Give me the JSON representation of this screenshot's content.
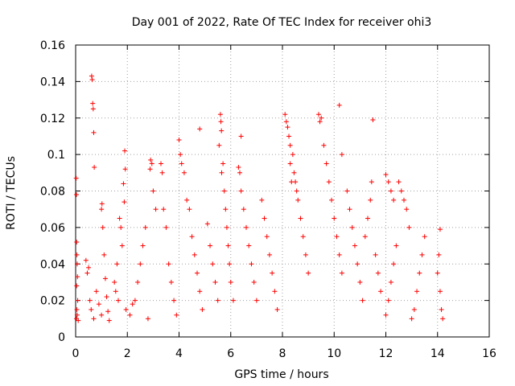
{
  "chart_data": {
    "type": "scatter",
    "title": "Day 001 of 2022, Rate Of TEC Index for receiver ohi3",
    "xlabel": "GPS time / hours",
    "ylabel": "ROTI / TECUs",
    "xlim": [
      0,
      16
    ],
    "ylim": [
      0,
      0.16
    ],
    "x_ticks": [
      0,
      2,
      4,
      6,
      8,
      10,
      12,
      14,
      16
    ],
    "x_tick_labels": [
      "0",
      "2",
      "4",
      "6",
      "8",
      "10",
      "12",
      "14",
      "16"
    ],
    "y_ticks": [
      0,
      0.02,
      0.04,
      0.06,
      0.08,
      0.1,
      0.12,
      0.14,
      0.16
    ],
    "y_tick_labels": [
      "0",
      "0.02",
      "0.04",
      "0.06",
      "0.08",
      "0.1",
      "0.12",
      "0.14",
      "0.16"
    ],
    "grid": true,
    "marker": "plus",
    "color": "#ff0000",
    "series": [
      {
        "values_xy": [
          [
            0.02,
            0.087
          ],
          [
            0.03,
            0.078
          ],
          [
            0.04,
            0.052
          ],
          [
            0.05,
            0.045
          ],
          [
            0.06,
            0.04
          ],
          [
            0.07,
            0.033
          ],
          [
            0.04,
            0.028
          ],
          [
            0.05,
            0.015
          ],
          [
            0.06,
            0.012
          ],
          [
            0.03,
            0.01
          ],
          [
            0.08,
            0.02
          ],
          [
            0.1,
            0.009
          ],
          [
            0.62,
            0.143
          ],
          [
            0.64,
            0.141
          ],
          [
            0.66,
            0.128
          ],
          [
            0.68,
            0.125
          ],
          [
            0.7,
            0.112
          ],
          [
            0.72,
            0.093
          ],
          [
            0.4,
            0.042
          ],
          [
            0.45,
            0.035
          ],
          [
            0.5,
            0.038
          ],
          [
            0.55,
            0.02
          ],
          [
            0.6,
            0.015
          ],
          [
            0.7,
            0.01
          ],
          [
            0.8,
            0.025
          ],
          [
            0.9,
            0.018
          ],
          [
            1.0,
            0.012
          ],
          [
            1.0,
            0.07
          ],
          [
            1.02,
            0.073
          ],
          [
            1.05,
            0.06
          ],
          [
            1.1,
            0.045
          ],
          [
            1.15,
            0.032
          ],
          [
            1.2,
            0.022
          ],
          [
            1.25,
            0.014
          ],
          [
            1.3,
            0.009
          ],
          [
            1.9,
            0.102
          ],
          [
            1.92,
            0.092
          ],
          [
            1.85,
            0.084
          ],
          [
            1.88,
            0.074
          ],
          [
            1.7,
            0.065
          ],
          [
            1.75,
            0.06
          ],
          [
            1.8,
            0.05
          ],
          [
            1.6,
            0.04
          ],
          [
            1.5,
            0.03
          ],
          [
            1.55,
            0.025
          ],
          [
            1.65,
            0.02
          ],
          [
            1.95,
            0.015
          ],
          [
            2.1,
            0.012
          ],
          [
            2.9,
            0.097
          ],
          [
            2.95,
            0.095
          ],
          [
            2.88,
            0.092
          ],
          [
            3.0,
            0.08
          ],
          [
            3.1,
            0.07
          ],
          [
            2.7,
            0.06
          ],
          [
            2.6,
            0.05
          ],
          [
            2.5,
            0.04
          ],
          [
            2.4,
            0.03
          ],
          [
            2.3,
            0.02
          ],
          [
            2.2,
            0.018
          ],
          [
            2.8,
            0.01
          ],
          [
            3.3,
            0.095
          ],
          [
            3.35,
            0.09
          ],
          [
            3.4,
            0.07
          ],
          [
            3.5,
            0.06
          ],
          [
            3.6,
            0.04
          ],
          [
            3.7,
            0.03
          ],
          [
            3.8,
            0.02
          ],
          [
            3.9,
            0.012
          ],
          [
            4.0,
            0.108
          ],
          [
            4.05,
            0.1
          ],
          [
            4.1,
            0.095
          ],
          [
            4.2,
            0.09
          ],
          [
            4.3,
            0.075
          ],
          [
            4.4,
            0.07
          ],
          [
            4.5,
            0.055
          ],
          [
            4.6,
            0.045
          ],
          [
            4.7,
            0.035
          ],
          [
            4.8,
            0.025
          ],
          [
            4.9,
            0.015
          ],
          [
            4.8,
            0.114
          ],
          [
            5.1,
            0.062
          ],
          [
            5.2,
            0.05
          ],
          [
            5.3,
            0.04
          ],
          [
            5.4,
            0.03
          ],
          [
            5.5,
            0.02
          ],
          [
            5.6,
            0.122
          ],
          [
            5.62,
            0.118
          ],
          [
            5.64,
            0.113
          ],
          [
            5.55,
            0.105
          ],
          [
            5.7,
            0.095
          ],
          [
            5.65,
            0.09
          ],
          [
            5.75,
            0.08
          ],
          [
            5.8,
            0.07
          ],
          [
            5.85,
            0.06
          ],
          [
            5.9,
            0.05
          ],
          [
            5.95,
            0.04
          ],
          [
            6.0,
            0.03
          ],
          [
            6.1,
            0.02
          ],
          [
            6.3,
            0.093
          ],
          [
            6.35,
            0.09
          ],
          [
            6.4,
            0.08
          ],
          [
            6.5,
            0.07
          ],
          [
            6.6,
            0.06
          ],
          [
            6.7,
            0.05
          ],
          [
            6.8,
            0.04
          ],
          [
            6.9,
            0.03
          ],
          [
            7.0,
            0.02
          ],
          [
            6.4,
            0.11
          ],
          [
            7.2,
            0.075
          ],
          [
            7.3,
            0.065
          ],
          [
            7.4,
            0.055
          ],
          [
            7.5,
            0.045
          ],
          [
            7.6,
            0.035
          ],
          [
            7.7,
            0.025
          ],
          [
            7.8,
            0.015
          ],
          [
            8.1,
            0.122
          ],
          [
            8.15,
            0.118
          ],
          [
            8.2,
            0.115
          ],
          [
            8.25,
            0.11
          ],
          [
            8.3,
            0.105
          ],
          [
            8.4,
            0.1
          ],
          [
            8.45,
            0.09
          ],
          [
            8.5,
            0.085
          ],
          [
            8.55,
            0.08
          ],
          [
            8.6,
            0.075
          ],
          [
            8.3,
            0.095
          ],
          [
            8.35,
            0.085
          ],
          [
            8.7,
            0.065
          ],
          [
            8.8,
            0.055
          ],
          [
            8.9,
            0.045
          ],
          [
            9.0,
            0.035
          ],
          [
            9.4,
            0.122
          ],
          [
            9.45,
            0.118
          ],
          [
            9.5,
            0.12
          ],
          [
            9.6,
            0.105
          ],
          [
            9.7,
            0.095
          ],
          [
            9.8,
            0.085
          ],
          [
            9.9,
            0.075
          ],
          [
            10.0,
            0.065
          ],
          [
            10.1,
            0.055
          ],
          [
            10.2,
            0.045
          ],
          [
            10.3,
            0.035
          ],
          [
            10.2,
            0.127
          ],
          [
            10.3,
            0.1
          ],
          [
            10.5,
            0.08
          ],
          [
            10.6,
            0.07
          ],
          [
            10.7,
            0.06
          ],
          [
            10.8,
            0.05
          ],
          [
            10.9,
            0.04
          ],
          [
            11.0,
            0.03
          ],
          [
            11.1,
            0.02
          ],
          [
            11.5,
            0.119
          ],
          [
            11.45,
            0.085
          ],
          [
            11.4,
            0.075
          ],
          [
            11.3,
            0.065
          ],
          [
            11.2,
            0.055
          ],
          [
            11.6,
            0.045
          ],
          [
            11.7,
            0.035
          ],
          [
            11.8,
            0.025
          ],
          [
            12.0,
            0.089
          ],
          [
            12.1,
            0.085
          ],
          [
            12.2,
            0.08
          ],
          [
            12.3,
            0.075
          ],
          [
            12.5,
            0.085
          ],
          [
            12.6,
            0.08
          ],
          [
            12.7,
            0.075
          ],
          [
            12.8,
            0.07
          ],
          [
            12.9,
            0.06
          ],
          [
            12.4,
            0.05
          ],
          [
            12.3,
            0.04
          ],
          [
            12.2,
            0.03
          ],
          [
            12.1,
            0.02
          ],
          [
            12.0,
            0.012
          ],
          [
            13.5,
            0.055
          ],
          [
            13.4,
            0.045
          ],
          [
            13.3,
            0.035
          ],
          [
            13.2,
            0.025
          ],
          [
            13.1,
            0.015
          ],
          [
            13.0,
            0.01
          ],
          [
            14.1,
            0.059
          ],
          [
            14.05,
            0.045
          ],
          [
            14.0,
            0.035
          ],
          [
            14.1,
            0.025
          ],
          [
            14.15,
            0.015
          ],
          [
            14.2,
            0.01
          ]
        ]
      }
    ]
  }
}
